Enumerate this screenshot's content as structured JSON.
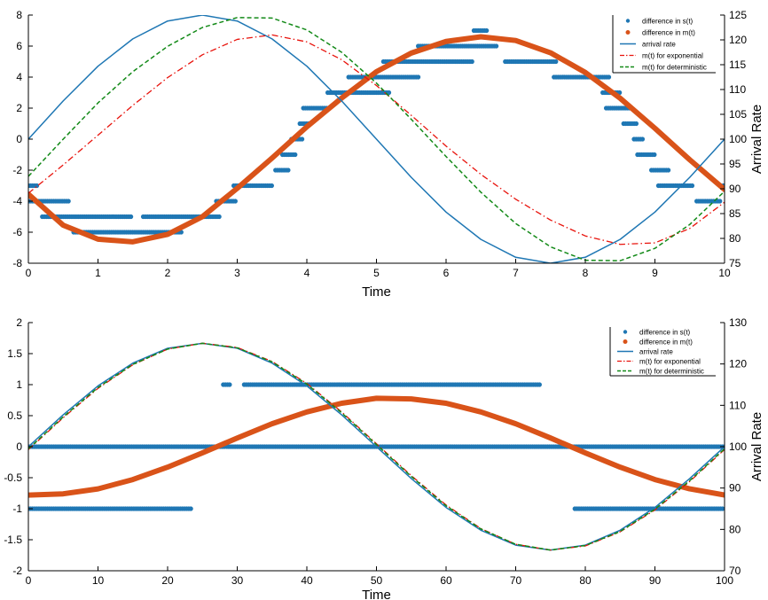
{
  "chart_data": [
    {
      "type": "line",
      "xlabel": "Time",
      "ylabel": "",
      "y2label": "Arrival Rate",
      "xlim": [
        0,
        10
      ],
      "ylim": [
        -8,
        8
      ],
      "y2lim": [
        75,
        125
      ],
      "xticks": [
        0,
        1,
        2,
        3,
        4,
        5,
        6,
        7,
        8,
        9,
        10
      ],
      "yticks": [
        -8,
        -6,
        -4,
        -2,
        0,
        2,
        4,
        6,
        8
      ],
      "y2ticks": [
        75,
        80,
        85,
        90,
        95,
        100,
        105,
        110,
        115,
        120,
        125
      ],
      "grid": false,
      "legend_position": "top-right",
      "legend": [
        "difference in s(t)",
        "difference in m(t)",
        "arrival rate",
        "m(t) for exponential",
        "m(t) for deterministic"
      ],
      "colors": {
        "s_diff": "#1f77b4",
        "m_diff": "#d95319",
        "arrival": "#1f77b4",
        "exponential": "#e8130c",
        "deterministic": "#138a18"
      },
      "series": [
        {
          "name": "difference in s(t)",
          "style": "points",
          "axis": "left",
          "segments": [
            {
              "y": -3,
              "x": [
                [
                  0.0,
                  0.15
                ],
                [
                  9.95,
                  10.0
                ]
              ]
            },
            {
              "y": -4,
              "x": [
                [
                  0.0,
                  0.6
                ],
                [
                  2.7,
                  3.0
                ],
                [
                  9.6,
                  9.95
                ]
              ]
            },
            {
              "y": -5,
              "x": [
                [
                  0.2,
                  1.5
                ],
                [
                  1.65,
                  2.75
                ]
              ]
            },
            {
              "y": -6,
              "x": [
                [
                  0.65,
                  2.2
                ]
              ]
            },
            {
              "y": -3,
              "x": [
                [
                  2.95,
                  3.5
                ],
                [
                  9.05,
                  9.55
                ]
              ]
            },
            {
              "y": -2,
              "x": [
                [
                  3.55,
                  3.75
                ],
                [
                  8.95,
                  9.2
                ]
              ]
            },
            {
              "y": -1,
              "x": [
                [
                  3.65,
                  3.85
                ],
                [
                  8.75,
                  9.0
                ]
              ]
            },
            {
              "y": 0,
              "x": [
                [
                  3.78,
                  3.95
                ],
                [
                  8.7,
                  8.85
                ]
              ]
            },
            {
              "y": 1,
              "x": [
                [
                  3.9,
                  4.05
                ],
                [
                  8.55,
                  8.75
                ]
              ]
            },
            {
              "y": 2,
              "x": [
                [
                  3.95,
                  4.3
                ],
                [
                  8.3,
                  8.65
                ]
              ]
            },
            {
              "y": 3,
              "x": [
                [
                  4.3,
                  5.2
                ],
                [
                  8.25,
                  8.5
                ]
              ]
            },
            {
              "y": 4,
              "x": [
                [
                  4.6,
                  5.6
                ],
                [
                  7.55,
                  8.35
                ]
              ]
            },
            {
              "y": 5,
              "x": [
                [
                  5.1,
                  6.4
                ],
                [
                  6.85,
                  7.6
                ]
              ]
            },
            {
              "y": 6,
              "x": [
                [
                  5.6,
                  6.75
                ]
              ]
            },
            {
              "y": 7,
              "x": [
                [
                  6.4,
                  6.6
                ]
              ]
            }
          ]
        },
        {
          "name": "difference in m(t)",
          "style": "thick-line",
          "axis": "left",
          "x": [
            0,
            0.5,
            1,
            1.5,
            2,
            2.5,
            3,
            3.5,
            4,
            4.5,
            5,
            5.5,
            6,
            6.5,
            7,
            7.5,
            8,
            8.5,
            9,
            9.5,
            10
          ],
          "y": [
            -3.55,
            -5.55,
            -6.45,
            -6.62,
            -6.14,
            -5.0,
            -3.17,
            -1.22,
            0.8,
            2.65,
            4.35,
            5.55,
            6.3,
            6.6,
            6.36,
            5.57,
            4.3,
            2.64,
            0.7,
            -1.33,
            -3.25
          ]
        },
        {
          "name": "arrival rate",
          "style": "solid",
          "axis": "right",
          "x": [
            0,
            0.5,
            1,
            1.5,
            2,
            2.5,
            3,
            3.5,
            4,
            4.5,
            5,
            5.5,
            6,
            6.5,
            7,
            7.5,
            8,
            8.5,
            9,
            9.5,
            10
          ],
          "y": [
            100,
            107.7,
            114.7,
            120.2,
            123.8,
            125,
            123.8,
            120.2,
            114.7,
            107.7,
            100,
            92.3,
            85.3,
            79.8,
            76.2,
            75,
            76.2,
            79.8,
            85.3,
            92.3,
            100
          ]
        },
        {
          "name": "m(t) for exponential",
          "style": "dash-dot",
          "axis": "right",
          "x": [
            0,
            0.5,
            1,
            1.5,
            2,
            2.5,
            3,
            3.5,
            4,
            4.5,
            5,
            5.5,
            6,
            6.5,
            7,
            7.5,
            8,
            8.5,
            9,
            9.5,
            10
          ],
          "y": [
            89.1,
            94.8,
            100.8,
            106.8,
            112.4,
            117.0,
            120.1,
            121.0,
            119.6,
            116.0,
            110.8,
            104.8,
            98.6,
            92.9,
            87.9,
            83.7,
            80.5,
            78.8,
            79.1,
            82.0,
            87.3
          ]
        },
        {
          "name": "m(t) for deterministic",
          "style": "dashed",
          "axis": "right",
          "x": [
            0,
            0.5,
            1,
            1.5,
            2,
            2.5,
            3,
            3.5,
            4,
            4.5,
            5,
            5.5,
            6,
            6.5,
            7,
            7.5,
            8,
            8.5,
            9,
            9.5,
            10
          ],
          "y": [
            92.5,
            100.0,
            107.3,
            113.6,
            118.7,
            122.5,
            124.5,
            124.4,
            122.0,
            117.5,
            111.3,
            104.0,
            96.5,
            89.3,
            83.0,
            78.3,
            75.6,
            75.5,
            78.0,
            82.8,
            89.5
          ]
        }
      ]
    },
    {
      "type": "line",
      "xlabel": "Time",
      "ylabel": "",
      "y2label": "Arrival Rate",
      "xlim": [
        0,
        100
      ],
      "ylim": [
        -2,
        2
      ],
      "y2lim": [
        70,
        130
      ],
      "xticks": [
        0,
        10,
        20,
        30,
        40,
        50,
        60,
        70,
        80,
        90,
        100
      ],
      "yticks": [
        -2,
        -1.5,
        -1,
        -0.5,
        0,
        0.5,
        1,
        1.5,
        2
      ],
      "y2ticks": [
        70,
        80,
        90,
        100,
        110,
        120,
        130
      ],
      "grid": false,
      "legend_position": "top-right",
      "legend": [
        "difference in s(t)",
        "difference in m(t)",
        "arrival rate",
        "m(t) for exponential",
        "m(t) for deterministic"
      ],
      "colors": {
        "s_diff": "#1f77b4",
        "m_diff": "#d95319",
        "arrival": "#1f77b4",
        "exponential": "#e8130c",
        "deterministic": "#138a18"
      },
      "series": [
        {
          "name": "difference in s(t)",
          "style": "points",
          "axis": "left",
          "segments": [
            {
              "y": 0,
              "x": [
                [
                  0,
                  100
                ]
              ]
            },
            {
              "y": 1,
              "x": [
                [
                  28,
                  29
                ],
                [
                  31,
                  73.5
                ]
              ]
            },
            {
              "y": -1,
              "x": [
                [
                  0,
                  23.5
                ],
                [
                  78.5,
                  100
                ]
              ]
            }
          ]
        },
        {
          "name": "difference in m(t)",
          "style": "thick-line",
          "axis": "left",
          "x": [
            0,
            5,
            10,
            15,
            20,
            25,
            30,
            35,
            40,
            45,
            50,
            55,
            60,
            65,
            70,
            75,
            80,
            85,
            90,
            95,
            100
          ],
          "y": [
            -0.78,
            -0.76,
            -0.68,
            -0.53,
            -0.33,
            -0.1,
            0.14,
            0.37,
            0.56,
            0.7,
            0.78,
            0.77,
            0.7,
            0.56,
            0.37,
            0.14,
            -0.1,
            -0.33,
            -0.53,
            -0.68,
            -0.78
          ]
        },
        {
          "name": "arrival rate",
          "style": "solid",
          "axis": "right",
          "x": [
            0,
            5,
            10,
            15,
            20,
            25,
            30,
            35,
            40,
            45,
            50,
            55,
            60,
            65,
            70,
            75,
            80,
            85,
            90,
            95,
            100
          ],
          "y": [
            100,
            107.7,
            114.7,
            120.2,
            123.8,
            125,
            123.8,
            120.2,
            114.7,
            107.7,
            100,
            92.3,
            85.3,
            79.8,
            76.2,
            75,
            76.2,
            79.8,
            85.3,
            92.3,
            100
          ]
        },
        {
          "name": "m(t) for exponential",
          "style": "dash-dot",
          "axis": "right",
          "x": [
            0,
            5,
            10,
            15,
            20,
            25,
            30,
            35,
            40,
            45,
            50,
            55,
            60,
            65,
            70,
            75,
            80,
            85,
            90,
            95,
            100
          ],
          "y": [
            99.3,
            107.0,
            114.1,
            119.8,
            123.6,
            125.0,
            124.0,
            120.6,
            115.3,
            108.4,
            100.7,
            93.0,
            85.9,
            80.2,
            76.4,
            75.0,
            76.0,
            79.4,
            84.7,
            91.6,
            99.3
          ]
        },
        {
          "name": "m(t) for deterministic",
          "style": "dashed",
          "axis": "right",
          "x": [
            0,
            5,
            10,
            15,
            20,
            25,
            30,
            35,
            40,
            45,
            50,
            55,
            60,
            65,
            70,
            75,
            80,
            85,
            90,
            95,
            100
          ],
          "y": [
            99.5,
            107.2,
            114.3,
            119.9,
            123.6,
            125.0,
            123.9,
            120.5,
            115.1,
            108.2,
            100.5,
            92.8,
            85.7,
            80.1,
            76.4,
            75.0,
            76.1,
            79.5,
            84.9,
            91.8,
            99.5
          ]
        }
      ]
    }
  ]
}
